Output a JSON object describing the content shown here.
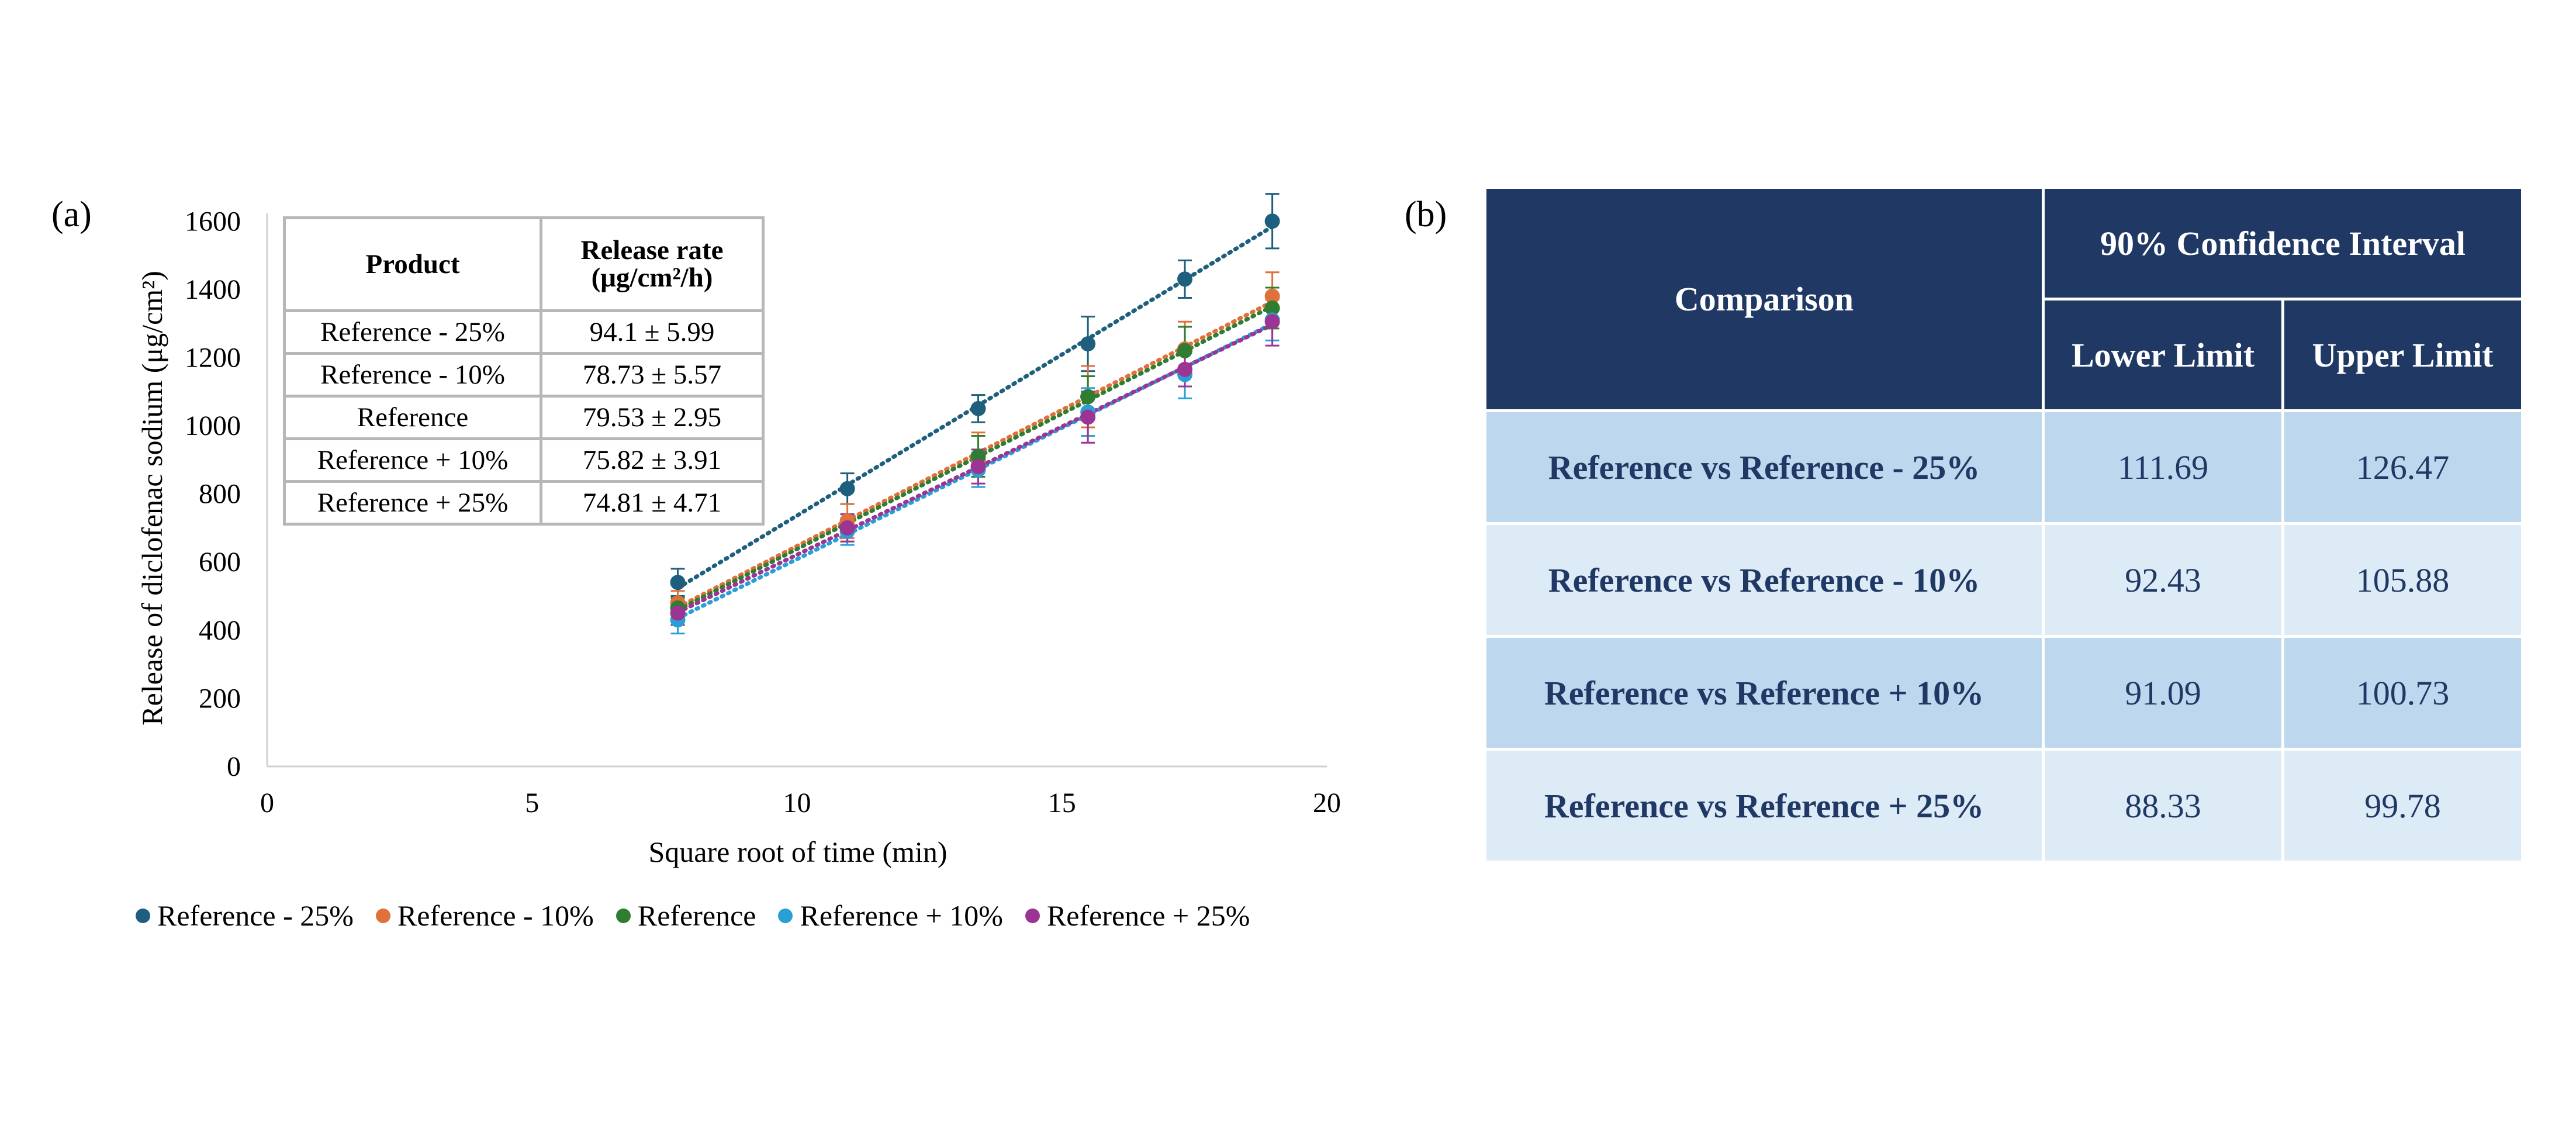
{
  "panel_labels": {
    "a": "(a)",
    "b": "(b)"
  },
  "colors": {
    "Reference - 25%": "#1f5f7e",
    "Reference - 10%": "#e0713a",
    "Reference": "#2e7d32",
    "Reference + 10%": "#2a9fd6",
    "Reference + 25%": "#9c3494",
    "table_header": "#203864",
    "row_dark": "#bdd7ee",
    "row_light": "#ddebf7"
  },
  "chart_data": {
    "type": "scatter",
    "xlabel": "Square root of time (min)",
    "ylabel": "Release of diclofenac sodium (μg/cm²)",
    "xlim": [
      0,
      20
    ],
    "ylim": [
      0,
      1700
    ],
    "xticks": [
      0,
      5,
      10,
      15,
      20
    ],
    "yticks": [
      0,
      200,
      400,
      600,
      800,
      1000,
      1200,
      1400,
      1600
    ],
    "x": [
      7.75,
      10.95,
      13.42,
      15.49,
      17.32,
      18.97
    ],
    "trendline": "linear, dotted",
    "error_bars": true,
    "legend_position": "bottom",
    "series": [
      {
        "name": "Reference - 25%",
        "values": [
          540,
          815,
          1050,
          1240,
          1430,
          1600
        ],
        "errors": [
          40,
          45,
          40,
          80,
          55,
          80
        ]
      },
      {
        "name": "Reference - 10%",
        "values": [
          480,
          720,
          900,
          1085,
          1225,
          1380
        ],
        "errors": [
          35,
          50,
          80,
          90,
          80,
          70
        ]
      },
      {
        "name": "Reference",
        "values": [
          465,
          700,
          910,
          1085,
          1220,
          1345
        ],
        "errors": [
          30,
          40,
          60,
          60,
          70,
          60
        ]
      },
      {
        "name": "Reference + 10%",
        "values": [
          430,
          690,
          870,
          1040,
          1150,
          1310
        ],
        "errors": [
          40,
          40,
          50,
          70,
          70,
          60
        ]
      },
      {
        "name": "Reference + 25%",
        "values": [
          450,
          700,
          880,
          1025,
          1165,
          1305
        ],
        "errors": [
          35,
          40,
          50,
          75,
          50,
          70
        ]
      }
    ]
  },
  "inset_table": {
    "headers": [
      "Product",
      "Release rate"
    ],
    "header_unit": "(μg/cm²/h)",
    "rows": [
      [
        "Reference - 25%",
        "94.1 ± 5.99"
      ],
      [
        "Reference - 10%",
        "78.73 ± 5.57"
      ],
      [
        "Reference",
        "79.53 ± 2.95"
      ],
      [
        "Reference + 10%",
        "75.82 ± 3.91"
      ],
      [
        "Reference + 25%",
        "74.81 ± 4.71"
      ]
    ]
  },
  "ci_table": {
    "header_comparison": "Comparison",
    "header_ci": "90% Confidence Interval",
    "header_lower": "Lower Limit",
    "header_upper": "Upper Limit",
    "rows": [
      [
        "Reference vs Reference - 25%",
        "111.69",
        "126.47"
      ],
      [
        "Reference vs Reference - 10%",
        "92.43",
        "105.88"
      ],
      [
        "Reference vs Reference + 10%",
        "91.09",
        "100.73"
      ],
      [
        "Reference vs Reference + 25%",
        "88.33",
        "99.78"
      ]
    ]
  }
}
